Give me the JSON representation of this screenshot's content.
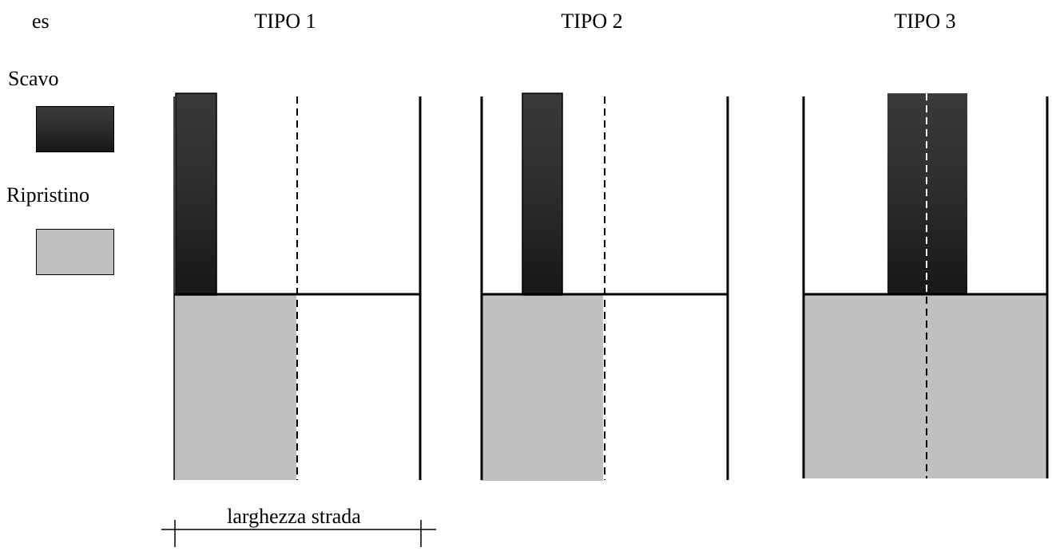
{
  "labels": {
    "example": "es",
    "tipo1": "TIPO 1",
    "tipo2": "TIPO 2",
    "tipo3": "TIPO 3",
    "width_caption": "larghezza strada"
  },
  "legend": {
    "scavo_label": "Scavo",
    "ripristino_label": "Ripristino"
  },
  "colors": {
    "scavo_top": "#3a3a3a",
    "scavo_bottom": "#171717",
    "ripristino": "#c0c0c0",
    "line": "#000000"
  }
}
